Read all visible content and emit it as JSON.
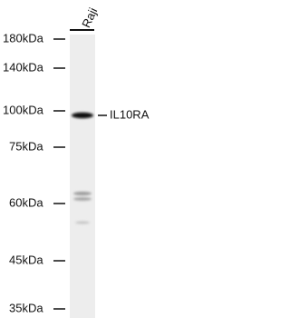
{
  "lane_labels": [
    "Raji"
  ],
  "markers": [
    "180kDa",
    "140kDa",
    "100kDa",
    "75kDa",
    "60kDa",
    "45kDa",
    "35kDa"
  ],
  "band_label": "IL10RA"
}
